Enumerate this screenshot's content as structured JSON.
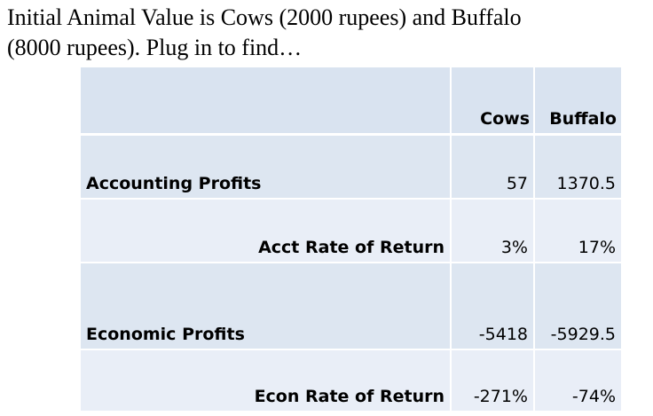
{
  "heading": {
    "line1": "Initial Animal Value is Cows (2000 rupees) and Buffalo",
    "line2": "(8000 rupees).  Plug in to find…"
  },
  "table": {
    "columns": [
      "",
      "Cows",
      "Buffalo"
    ],
    "rows": [
      {
        "label": "Accounting Profits",
        "cows": "57",
        "buffalo": "1370.5"
      },
      {
        "label": "Acct Rate of Return",
        "cows": "3%",
        "buffalo": "17%"
      },
      {
        "label": "Economic Profits",
        "cows": "-5418",
        "buffalo": "-5929.5"
      },
      {
        "label": "Econ Rate of Return",
        "cows": "-271%",
        "buffalo": "-74%"
      }
    ]
  },
  "colors": {
    "header_fill": "#d9e3f0",
    "dark_row_fill": "#dde6f1",
    "light_row_fill": "#e9eef7"
  }
}
